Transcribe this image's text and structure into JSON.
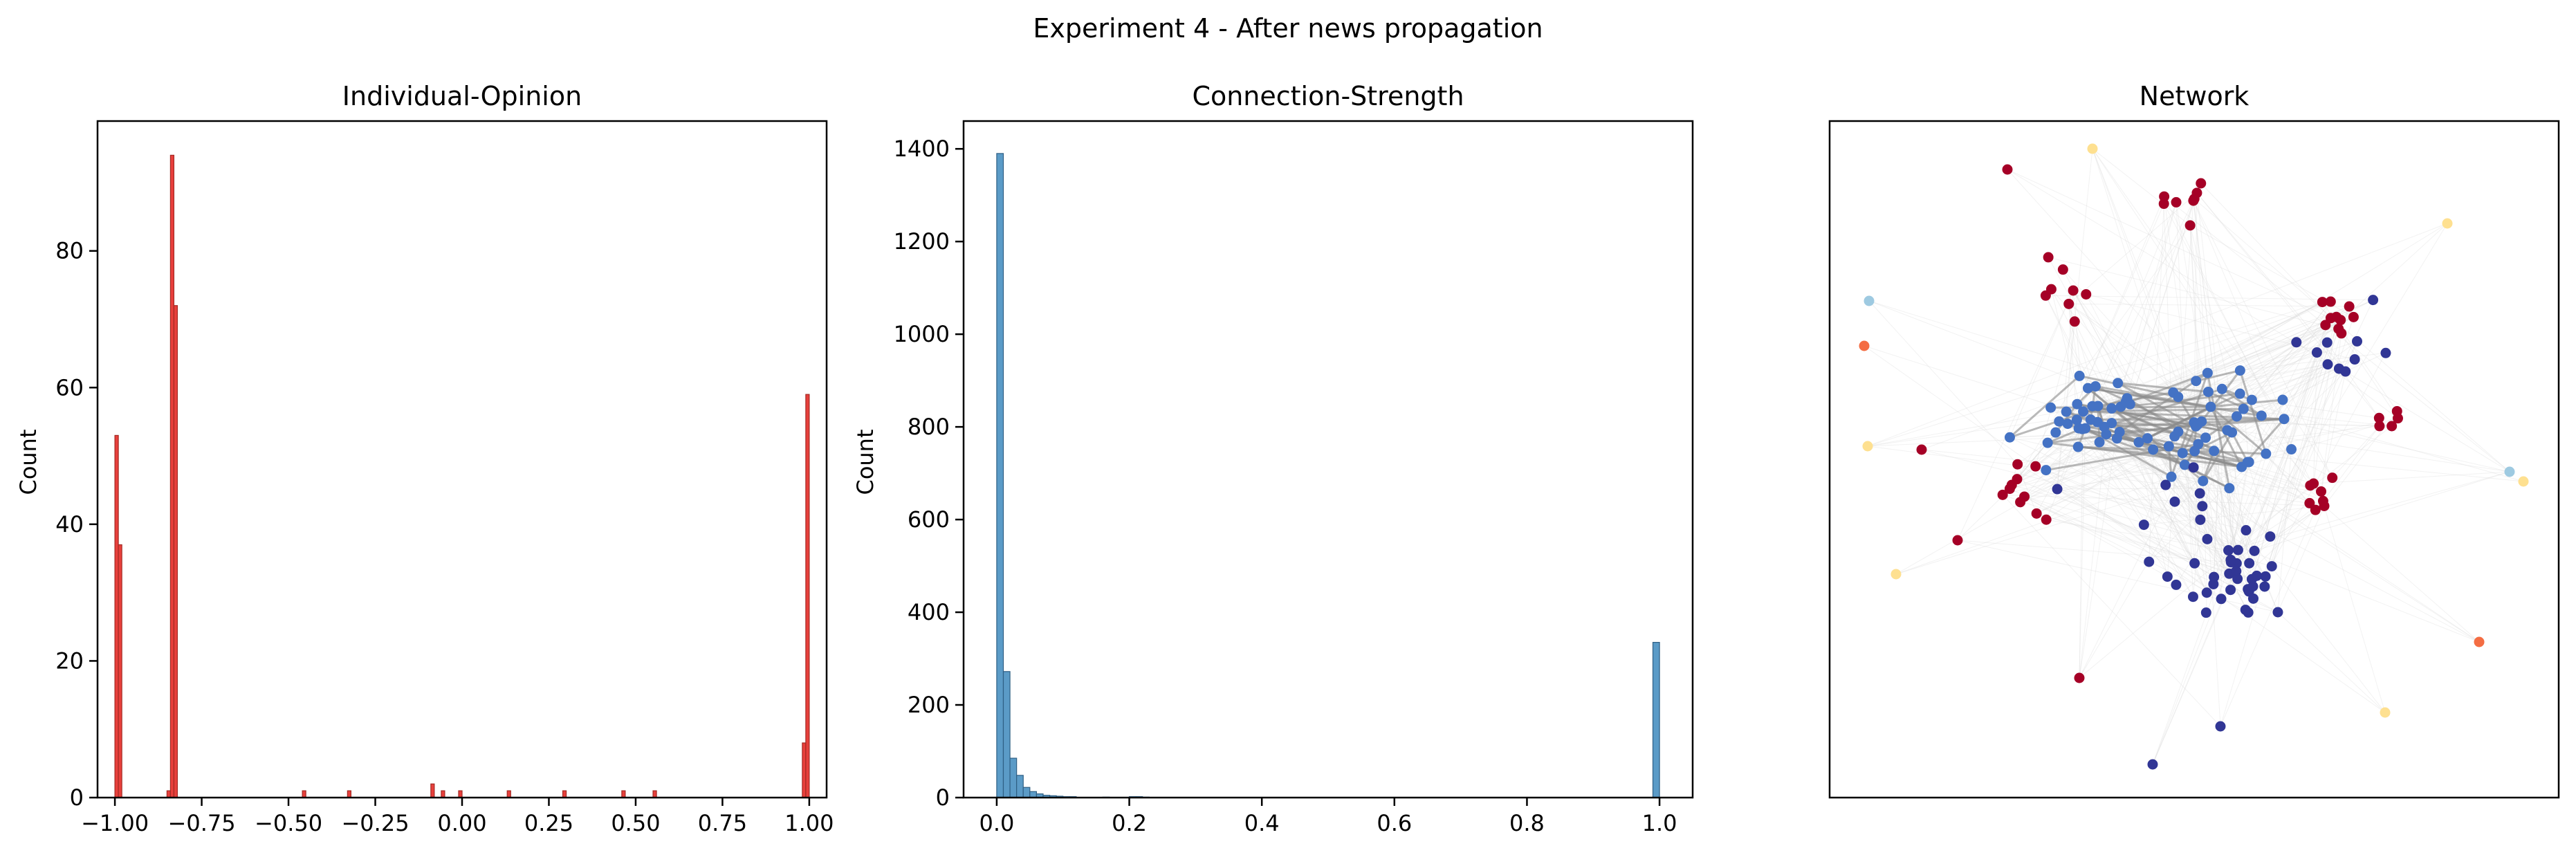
{
  "figure": {
    "suptitle": "Experiment 4 - After news propagation"
  },
  "chart_data": [
    {
      "type": "bar",
      "title": "Individual-Opinion",
      "xlabel": "",
      "ylabel": "Count",
      "xlim": [
        -1.05,
        1.05
      ],
      "ylim": [
        0,
        99
      ],
      "xticks": [
        -1.0,
        -0.75,
        -0.5,
        -0.25,
        0.0,
        0.25,
        0.5,
        0.75,
        1.0
      ],
      "xtick_labels": [
        "−1.00",
        "−0.75",
        "−0.50",
        "−0.25",
        "0.00",
        "0.25",
        "0.50",
        "0.75",
        "1.00"
      ],
      "yticks": [
        0,
        20,
        40,
        60,
        80
      ],
      "ytick_labels": [
        "0",
        "20",
        "40",
        "60",
        "80"
      ],
      "bin_width": 0.01,
      "bins": [
        {
          "x": -1.0,
          "count": 53
        },
        {
          "x": -0.99,
          "count": 37
        },
        {
          "x": -0.85,
          "count": 1
        },
        {
          "x": -0.84,
          "count": 94
        },
        {
          "x": -0.83,
          "count": 72
        },
        {
          "x": -0.46,
          "count": 1
        },
        {
          "x": -0.33,
          "count": 1
        },
        {
          "x": -0.09,
          "count": 2
        },
        {
          "x": -0.06,
          "count": 1
        },
        {
          "x": -0.01,
          "count": 1
        },
        {
          "x": 0.13,
          "count": 1
        },
        {
          "x": 0.29,
          "count": 1
        },
        {
          "x": 0.46,
          "count": 1
        },
        {
          "x": 0.55,
          "count": 1
        },
        {
          "x": 0.98,
          "count": 8
        },
        {
          "x": 0.99,
          "count": 59
        }
      ],
      "colors": {
        "fill": "#e8403c",
        "edge": "#a32a24"
      }
    },
    {
      "type": "bar",
      "title": "Connection-Strength",
      "xlabel": "",
      "ylabel": "Count",
      "xlim": [
        -0.05,
        1.05
      ],
      "ylim": [
        0,
        1460
      ],
      "xticks": [
        0.0,
        0.2,
        0.4,
        0.6,
        0.8,
        1.0
      ],
      "xtick_labels": [
        "0.0",
        "0.2",
        "0.4",
        "0.6",
        "0.8",
        "1.0"
      ],
      "yticks": [
        0,
        200,
        400,
        600,
        800,
        1000,
        1200,
        1400
      ],
      "ytick_labels": [
        "0",
        "200",
        "400",
        "600",
        "800",
        "1000",
        "1200",
        "1400"
      ],
      "bin_width": 0.01,
      "bins": [
        {
          "x": 0.0,
          "count": 1390
        },
        {
          "x": 0.01,
          "count": 272
        },
        {
          "x": 0.02,
          "count": 85
        },
        {
          "x": 0.03,
          "count": 48
        },
        {
          "x": 0.04,
          "count": 22
        },
        {
          "x": 0.05,
          "count": 13
        },
        {
          "x": 0.06,
          "count": 8
        },
        {
          "x": 0.07,
          "count": 5
        },
        {
          "x": 0.08,
          "count": 4
        },
        {
          "x": 0.09,
          "count": 3
        },
        {
          "x": 0.1,
          "count": 2
        },
        {
          "x": 0.11,
          "count": 2
        },
        {
          "x": 0.16,
          "count": 1
        },
        {
          "x": 0.2,
          "count": 2
        },
        {
          "x": 0.21,
          "count": 2
        },
        {
          "x": 0.22,
          "count": 1
        },
        {
          "x": 0.99,
          "count": 335
        }
      ],
      "colors": {
        "fill": "#5b9bc7",
        "edge": "#2f5f84"
      }
    },
    {
      "type": "scatter",
      "title": "Network",
      "description_note": "",
      "colors": {
        "cluster_blue": "#4472c4",
        "dark_blue": "#313695",
        "red": "#a50026",
        "light_blue": "#9ecae1",
        "orange": "#f46d43",
        "pale_yellow": "#fee090",
        "edge_gray": "#d9d9d9",
        "strong_edge": "#8c8c8c"
      }
    }
  ]
}
